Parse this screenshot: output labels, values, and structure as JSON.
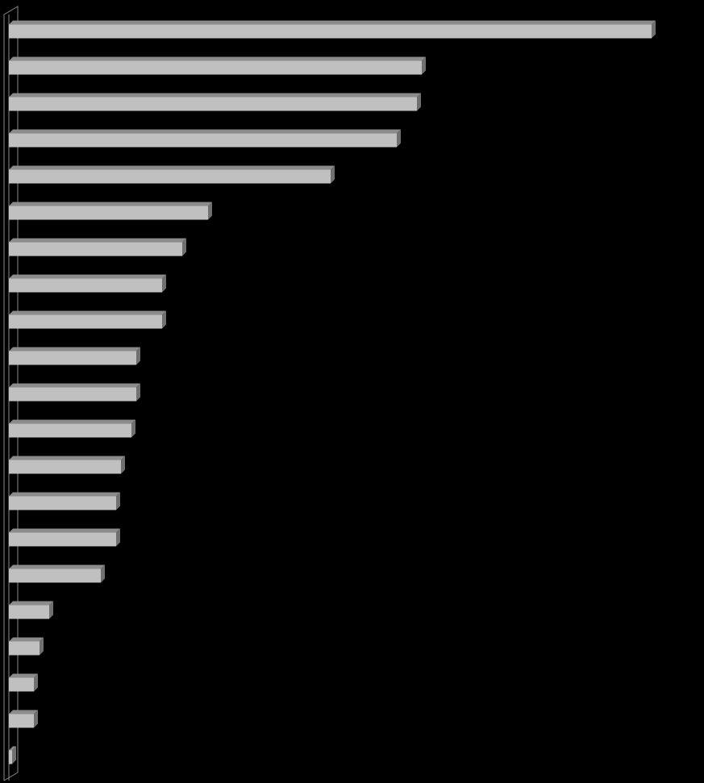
{
  "chart_data": {
    "type": "bar3d",
    "orientation": "horizontal",
    "categories": [
      null,
      null,
      null,
      null,
      null,
      null,
      null,
      null,
      null,
      null,
      null,
      null,
      null,
      null,
      null,
      null,
      null,
      null,
      null,
      null,
      null
    ],
    "values": [
      797,
      512,
      506,
      481,
      399,
      247,
      215,
      190,
      190,
      158,
      158,
      152,
      139,
      133,
      133,
      114,
      50,
      38,
      31,
      31,
      4
    ],
    "xlim": [
      0,
      800
    ],
    "color": "#c0c0c0",
    "top_color": "#8c8c8c",
    "side_color": "#707070",
    "background": "#000000"
  }
}
